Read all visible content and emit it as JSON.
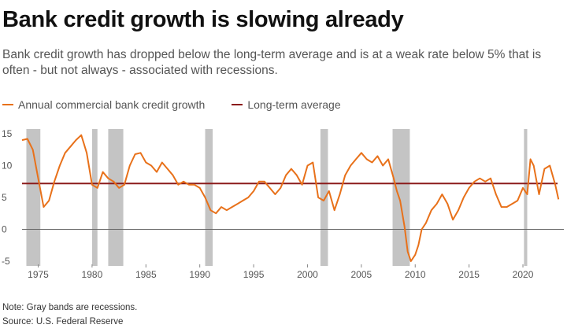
{
  "title": "Bank credit growth is slowing already",
  "subtitle": "Bank credit growth has dropped below the long-term average and is at a weak rate below 5% that is often - but not always - associated with recessions.",
  "legend": {
    "growth_label": "Annual commercial bank credit growth",
    "average_label": "Long-term average"
  },
  "note": "Note: Gray bands are recessions.",
  "source": "Source: U.S. Federal Reserve",
  "colors": {
    "growth": "#e8711a",
    "average": "#8b1a1a",
    "recession": "#c4c4c4",
    "zero_line": "#666666"
  },
  "chart_data": {
    "type": "line",
    "xlim": [
      1973.5,
      2023.8
    ],
    "ylim": [
      -5.5,
      15.5
    ],
    "y_ticks": [
      15,
      10,
      5,
      0,
      -5
    ],
    "y_tick_labels": [
      "15",
      "10",
      "5",
      "0",
      "-5"
    ],
    "x_ticks": [
      1975,
      1980,
      1985,
      1990,
      1995,
      2000,
      2005,
      2010,
      2015,
      2020
    ],
    "x_tick_labels": [
      "1975",
      "1980",
      "1985",
      "1990",
      "1995",
      "2000",
      "2005",
      "2010",
      "2015",
      "2020"
    ],
    "long_term_average": 7.2,
    "recessions": [
      [
        1973.9,
        1975.2
      ],
      [
        1980.0,
        1980.5
      ],
      [
        1981.5,
        1982.9
      ],
      [
        1990.5,
        1991.2
      ],
      [
        2001.2,
        2001.9
      ],
      [
        2007.9,
        2009.5
      ],
      [
        2020.1,
        2020.4
      ]
    ],
    "series": [
      {
        "name": "Annual commercial bank credit growth",
        "x": [
          1973.5,
          1974.0,
          1974.5,
          1975.0,
          1975.5,
          1976.0,
          1976.5,
          1977.0,
          1977.5,
          1978.0,
          1978.5,
          1979.0,
          1979.5,
          1980.0,
          1980.5,
          1981.0,
          1981.5,
          1982.0,
          1982.5,
          1983.0,
          1983.5,
          1984.0,
          1984.5,
          1985.0,
          1985.5,
          1986.0,
          1986.5,
          1987.0,
          1987.5,
          1988.0,
          1988.5,
          1989.0,
          1989.5,
          1990.0,
          1990.5,
          1991.0,
          1991.5,
          1992.0,
          1992.5,
          1993.0,
          1993.5,
          1994.0,
          1994.5,
          1995.0,
          1995.5,
          1996.0,
          1996.5,
          1997.0,
          1997.5,
          1998.0,
          1998.5,
          1999.0,
          1999.5,
          2000.0,
          2000.5,
          2001.0,
          2001.5,
          2002.0,
          2002.5,
          2003.0,
          2003.5,
          2004.0,
          2004.5,
          2005.0,
          2005.5,
          2006.0,
          2006.5,
          2007.0,
          2007.5,
          2008.0,
          2008.3,
          2008.6,
          2009.0,
          2009.3,
          2009.6,
          2010.0,
          2010.3,
          2010.6,
          2011.0,
          2011.5,
          2012.0,
          2012.5,
          2013.0,
          2013.5,
          2014.0,
          2014.5,
          2015.0,
          2015.5,
          2016.0,
          2016.5,
          2017.0,
          2017.5,
          2018.0,
          2018.5,
          2019.0,
          2019.5,
          2020.0,
          2020.4,
          2020.7,
          2021.0,
          2021.5,
          2022.0,
          2022.5,
          2023.0,
          2023.3
        ],
        "y": [
          14.0,
          14.2,
          12.5,
          8.0,
          3.5,
          4.5,
          7.5,
          10.0,
          12.0,
          13.0,
          14.0,
          14.8,
          12.0,
          7.0,
          6.5,
          9.0,
          8.0,
          7.5,
          6.5,
          7.0,
          10.0,
          11.8,
          12.0,
          10.5,
          10.0,
          9.0,
          10.5,
          9.5,
          8.5,
          7.0,
          7.5,
          7.0,
          7.0,
          6.5,
          5.0,
          3.0,
          2.5,
          3.5,
          3.0,
          3.5,
          4.0,
          4.5,
          5.0,
          6.0,
          7.5,
          7.5,
          6.5,
          5.5,
          6.5,
          8.5,
          9.5,
          8.5,
          7.0,
          10.0,
          10.5,
          5.0,
          4.5,
          6.0,
          3.0,
          5.5,
          8.5,
          10.0,
          11.0,
          12.0,
          11.0,
          10.5,
          11.5,
          10.0,
          11.0,
          8.0,
          6.0,
          4.5,
          0.5,
          -3.5,
          -5.0,
          -4.0,
          -2.5,
          0.0,
          1.0,
          3.0,
          4.0,
          5.5,
          4.0,
          1.5,
          3.0,
          5.0,
          6.5,
          7.5,
          8.0,
          7.5,
          8.0,
          5.5,
          3.5,
          3.5,
          4.0,
          4.5,
          6.5,
          5.5,
          11.0,
          10.0,
          5.5,
          9.5,
          10.0,
          7.0,
          4.7
        ]
      }
    ]
  }
}
